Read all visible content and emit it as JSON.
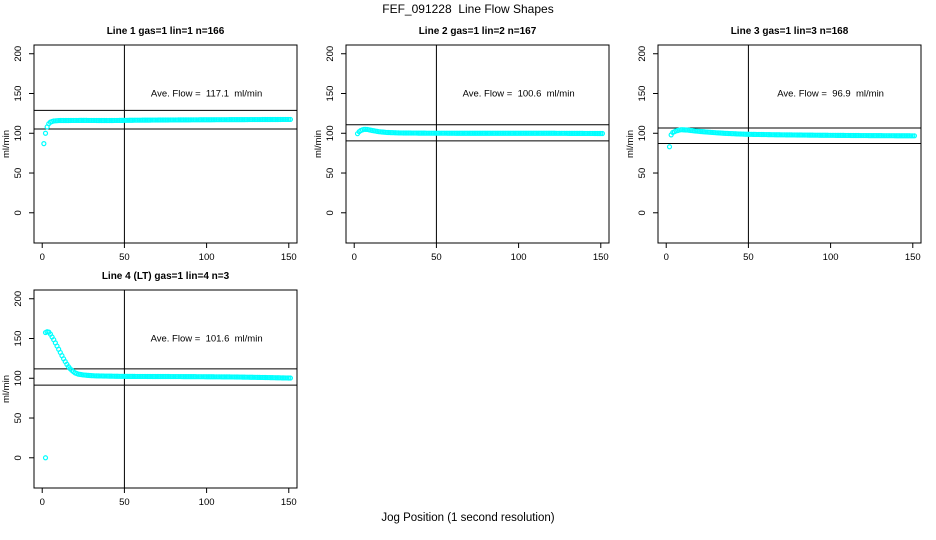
{
  "figure": {
    "title": "FEF_091228  Line Flow Shapes",
    "xlabel": "Jog Position (1 second resolution)"
  },
  "colors": {
    "points": "#00ffff",
    "axis": "#000000",
    "background": "#ffffff"
  },
  "chart_data": [
    {
      "type": "scatter",
      "title": "Line 1 gas=1 lin=1 n=166",
      "ylabel": "ml/min",
      "annotation": "Ave. Flow =  117.1  ml/min",
      "annotation_xy": [
        100,
        150
      ],
      "ave_flow": 117.1,
      "n": 166,
      "xlim": [
        -5,
        155
      ],
      "ylim": [
        -38,
        211
      ],
      "x_ticks": [
        0,
        50,
        100,
        150
      ],
      "y_ticks": [
        0,
        50,
        100,
        150,
        200
      ],
      "vline_x": 50,
      "hlines": [
        128.8,
        105.4
      ],
      "grid": false,
      "points_step": 1,
      "series": [
        {
          "name": "flow",
          "keypoints": [
            [
              1,
              87
            ],
            [
              2,
              100
            ],
            [
              3,
              108
            ],
            [
              4,
              112
            ],
            [
              5,
              114
            ],
            [
              7,
              115.5
            ],
            [
              10,
              116
            ],
            [
              25,
              116.2
            ],
            [
              40,
              116
            ],
            [
              55,
              116.4
            ],
            [
              75,
              116.7
            ],
            [
              100,
              117
            ],
            [
              125,
              117.2
            ],
            [
              151,
              117.4
            ]
          ],
          "extra_points": []
        }
      ]
    },
    {
      "type": "scatter",
      "title": "Line 2 gas=1 lin=2 n=167",
      "ylabel": "ml/min",
      "annotation": "Ave. Flow =  100.6  ml/min",
      "annotation_xy": [
        100,
        150
      ],
      "ave_flow": 100.6,
      "n": 167,
      "xlim": [
        -5,
        155
      ],
      "ylim": [
        -38,
        211
      ],
      "x_ticks": [
        0,
        50,
        100,
        150
      ],
      "y_ticks": [
        0,
        50,
        100,
        150,
        200
      ],
      "vline_x": 50,
      "hlines": [
        110.7,
        90.5
      ],
      "grid": false,
      "points_step": 1,
      "series": [
        {
          "name": "flow",
          "keypoints": [
            [
              2,
              99.5
            ],
            [
              3,
              102
            ],
            [
              4,
              103.5
            ],
            [
              6,
              105
            ],
            [
              8,
              104.8
            ],
            [
              11,
              103.5
            ],
            [
              15,
              102
            ],
            [
              20,
              101
            ],
            [
              28,
              100.4
            ],
            [
              45,
              100.1
            ],
            [
              80,
              100
            ],
            [
              120,
              100
            ],
            [
              151,
              99.7
            ]
          ],
          "extra_points": []
        }
      ]
    },
    {
      "type": "scatter",
      "title": "Line 3 gas=1 lin=3 n=168",
      "ylabel": "ml/min",
      "annotation": "Ave. Flow =  96.9  ml/min",
      "annotation_xy": [
        100,
        150
      ],
      "ave_flow": 96.9,
      "n": 168,
      "xlim": [
        -5,
        155
      ],
      "ylim": [
        -38,
        211
      ],
      "x_ticks": [
        0,
        50,
        100,
        150
      ],
      "y_ticks": [
        0,
        50,
        100,
        150,
        200
      ],
      "vline_x": 50,
      "hlines": [
        106.6,
        87.2
      ],
      "grid": false,
      "points_step": 1,
      "series": [
        {
          "name": "flow",
          "keypoints": [
            [
              2,
              83
            ],
            [
              3,
              98
            ],
            [
              4,
              101
            ],
            [
              6,
              103
            ],
            [
              9,
              104.5
            ],
            [
              13,
              104
            ],
            [
              18,
              102.8
            ],
            [
              25,
              101.5
            ],
            [
              35,
              100
            ],
            [
              48,
              98.8
            ],
            [
              65,
              98.2
            ],
            [
              90,
              97.6
            ],
            [
              120,
              97.1
            ],
            [
              151,
              96.8
            ]
          ],
          "extra_points": []
        }
      ]
    },
    {
      "type": "scatter",
      "title": "Line 4 (LT) gas=1 lin=4 n=3",
      "ylabel": "ml/min",
      "annotation": "Ave. Flow =  101.6  ml/min",
      "annotation_xy": [
        100,
        150
      ],
      "ave_flow": 101.6,
      "n": 3,
      "xlim": [
        -5,
        155
      ],
      "ylim": [
        -38,
        211
      ],
      "x_ticks": [
        0,
        50,
        100,
        150
      ],
      "y_ticks": [
        0,
        50,
        100,
        150,
        200
      ],
      "vline_x": 50,
      "hlines": [
        111.8,
        91.4
      ],
      "grid": false,
      "points_step": 1,
      "series": [
        {
          "name": "flow",
          "keypoints": [
            [
              2,
              157.5
            ],
            [
              3,
              158.5
            ],
            [
              4,
              158
            ],
            [
              5,
              155.5
            ],
            [
              6,
              152
            ],
            [
              7,
              148.5
            ],
            [
              8,
              144.5
            ],
            [
              9,
              140.5
            ],
            [
              10,
              136.5
            ],
            [
              11,
              132.5
            ],
            [
              12,
              128.5
            ],
            [
              13,
              124.5
            ],
            [
              14,
              121
            ],
            [
              15,
              117.5
            ],
            [
              16,
              114.5
            ],
            [
              17,
              112
            ],
            [
              18,
              110
            ],
            [
              19,
              108.3
            ],
            [
              20,
              106.8
            ],
            [
              22,
              105.2
            ],
            [
              25,
              104.2
            ],
            [
              28,
              103.6
            ],
            [
              32,
              103.1
            ],
            [
              38,
              102.8
            ],
            [
              46,
              102.5
            ],
            [
              58,
              102.3
            ],
            [
              75,
              102.2
            ],
            [
              95,
              102
            ],
            [
              115,
              101.7
            ],
            [
              135,
              101
            ],
            [
              151,
              100.3
            ]
          ],
          "extra_points": [
            [
              2,
              0
            ]
          ]
        }
      ]
    }
  ]
}
